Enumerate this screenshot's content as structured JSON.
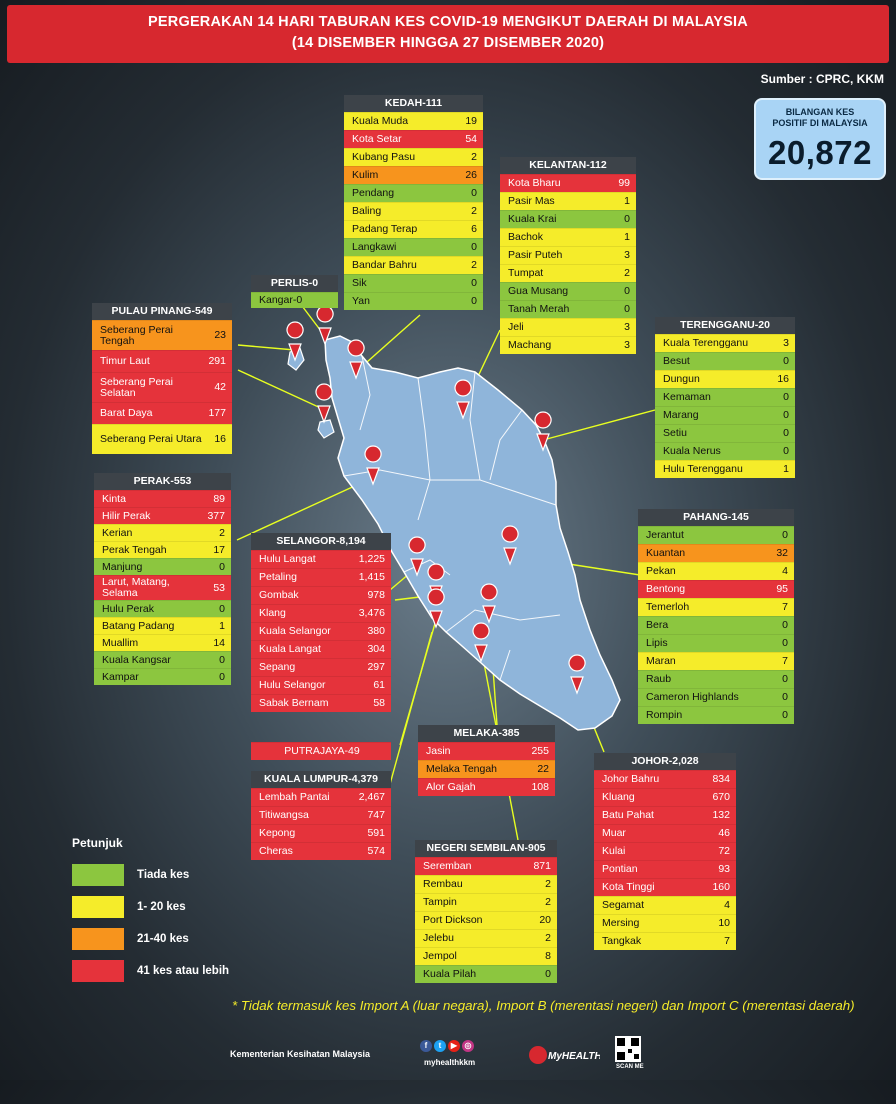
{
  "header": {
    "line1": "PERGERAKAN 14 HARI TABURAN KES COVID-19 MENGIKUT DAERAH DI MALAYSIA",
    "line2": "(14 DISEMBER HINGGA 27 DISEMBER 2020)"
  },
  "source": "Sumber : CPRC, KKM",
  "total": {
    "label_1": "BILANGAN KES",
    "label_2": "POSITIF DI MALAYSIA",
    "value": "20,872"
  },
  "colors": {
    "red": "#e5333b",
    "yellow": "#f5ec2a",
    "green": "#8cc63f",
    "orange": "#f7941d",
    "header": "#3d4349",
    "banner": "#d7282f",
    "map": "#8fb5da"
  },
  "states": [
    {
      "id": "kedah",
      "title": "KEDAH-111",
      "districts": [
        [
          "Kuala Muda",
          "19",
          "y"
        ],
        [
          "Kota Setar",
          "54",
          "r"
        ],
        [
          "Kubang Pasu",
          "2",
          "y"
        ],
        [
          "Kulim",
          "26",
          "o"
        ],
        [
          "Pendang",
          "0",
          "g"
        ],
        [
          "Baling",
          "2",
          "y"
        ],
        [
          "Padang Terap",
          "6",
          "y"
        ],
        [
          "Langkawi",
          "0",
          "g"
        ],
        [
          "Bandar Bahru",
          "2",
          "y"
        ],
        [
          "Sik",
          "0",
          "g"
        ],
        [
          "Yan",
          "0",
          "g"
        ]
      ]
    },
    {
      "id": "kelantan",
      "title": "KELANTAN-112",
      "districts": [
        [
          "Kota Bharu",
          "99",
          "r"
        ],
        [
          "Pasir Mas",
          "1",
          "y"
        ],
        [
          "Kuala Krai",
          "0",
          "g"
        ],
        [
          "Bachok",
          "1",
          "y"
        ],
        [
          "Pasir Puteh",
          "3",
          "y"
        ],
        [
          "Tumpat",
          "2",
          "y"
        ],
        [
          "Gua Musang",
          "0",
          "g"
        ],
        [
          "Tanah Merah",
          "0",
          "g"
        ],
        [
          "Jeli",
          "3",
          "y"
        ],
        [
          "Machang",
          "3",
          "y"
        ]
      ]
    },
    {
      "id": "perlis",
      "title": "PERLIS-0",
      "districts": [
        [
          "Kangar-0",
          "",
          "g"
        ]
      ]
    },
    {
      "id": "pinang",
      "title": "PULAU PINANG-549",
      "districts": [
        [
          "Seberang Perai Tengah",
          "23",
          "o"
        ],
        [
          "Timur Laut",
          "291",
          "r"
        ],
        [
          "Seberang Perai Selatan",
          "42",
          "r"
        ],
        [
          "Barat Daya",
          "177",
          "r"
        ],
        [
          "Seberang Perai Utara",
          "16",
          "y"
        ]
      ]
    },
    {
      "id": "terengganu",
      "title": "TERENGGANU-20",
      "districts": [
        [
          "Kuala Terengganu",
          "3",
          "y"
        ],
        [
          "Besut",
          "0",
          "g"
        ],
        [
          "Dungun",
          "16",
          "y"
        ],
        [
          "Kemaman",
          "0",
          "g"
        ],
        [
          "Marang",
          "0",
          "g"
        ],
        [
          "Setiu",
          "0",
          "g"
        ],
        [
          "Kuala Nerus",
          "0",
          "g"
        ],
        [
          "Hulu Terengganu",
          "1",
          "y"
        ]
      ]
    },
    {
      "id": "perak",
      "title": "PERAK-553",
      "districts": [
        [
          "Kinta",
          "89",
          "r"
        ],
        [
          "Hilir Perak",
          "377",
          "r"
        ],
        [
          "Kerian",
          "2",
          "y"
        ],
        [
          "Perak Tengah",
          "17",
          "y"
        ],
        [
          "Manjung",
          "0",
          "g"
        ],
        [
          "Larut, Matang, Selama",
          "53",
          "r"
        ],
        [
          "Hulu Perak",
          "0",
          "g"
        ],
        [
          "Batang Padang",
          "1",
          "y"
        ],
        [
          "Muallim",
          "14",
          "y"
        ],
        [
          "Kuala Kangsar",
          "0",
          "g"
        ],
        [
          "Kampar",
          "0",
          "g"
        ]
      ]
    },
    {
      "id": "selangor",
      "title": "SELANGOR-8,194",
      "districts": [
        [
          "Hulu Langat",
          "1,225",
          "r"
        ],
        [
          "Petaling",
          "1,415",
          "r"
        ],
        [
          "Gombak",
          "978",
          "r"
        ],
        [
          "Klang",
          "3,476",
          "r"
        ],
        [
          "Kuala Selangor",
          "380",
          "r"
        ],
        [
          "Kuala Langat",
          "304",
          "r"
        ],
        [
          "Sepang",
          "297",
          "r"
        ],
        [
          "Hulu Selangor",
          "61",
          "r"
        ],
        [
          "Sabak Bernam",
          "58",
          "r"
        ]
      ]
    },
    {
      "id": "pahang",
      "title": "PAHANG-145",
      "districts": [
        [
          "Jerantut",
          "0",
          "g"
        ],
        [
          "Kuantan",
          "32",
          "o"
        ],
        [
          "Pekan",
          "4",
          "y"
        ],
        [
          "Bentong",
          "95",
          "r"
        ],
        [
          "Temerloh",
          "7",
          "y"
        ],
        [
          "Bera",
          "0",
          "g"
        ],
        [
          "Lipis",
          "0",
          "g"
        ],
        [
          "Maran",
          "7",
          "y"
        ],
        [
          "Raub",
          "0",
          "g"
        ],
        [
          "Cameron Highlands",
          "0",
          "g"
        ],
        [
          "Rompin",
          "0",
          "g"
        ]
      ]
    },
    {
      "id": "putrajaya",
      "title": "",
      "districts": [
        [
          "PUTRAJAYA-49",
          "",
          "r"
        ]
      ]
    },
    {
      "id": "melaka",
      "title": "MELAKA-385",
      "districts": [
        [
          "Jasin",
          "255",
          "r"
        ],
        [
          "Melaka Tengah",
          "22",
          "o"
        ],
        [
          "Alor Gajah",
          "108",
          "r"
        ]
      ]
    },
    {
      "id": "kl",
      "title": "KUALA LUMPUR-4,379",
      "districts": [
        [
          "Lembah Pantai",
          "2,467",
          "r"
        ],
        [
          "Titiwangsa",
          "747",
          "r"
        ],
        [
          "Kepong",
          "591",
          "r"
        ],
        [
          "Cheras",
          "574",
          "r"
        ]
      ]
    },
    {
      "id": "johor",
      "title": "JOHOR-2,028",
      "districts": [
        [
          "Johor Bahru",
          "834",
          "r"
        ],
        [
          "Kluang",
          "670",
          "r"
        ],
        [
          "Batu Pahat",
          "132",
          "r"
        ],
        [
          "Muar",
          "46",
          "r"
        ],
        [
          "Kulai",
          "72",
          "r"
        ],
        [
          "Pontian",
          "93",
          "r"
        ],
        [
          "Kota Tinggi",
          "160",
          "r"
        ],
        [
          "Segamat",
          "4",
          "y"
        ],
        [
          "Mersing",
          "10",
          "y"
        ],
        [
          "Tangkak",
          "7",
          "y"
        ]
      ]
    },
    {
      "id": "ns",
      "title": "NEGERI SEMBILAN-905",
      "districts": [
        [
          "Seremban",
          "871",
          "r"
        ],
        [
          "Rembau",
          "2",
          "y"
        ],
        [
          "Tampin",
          "2",
          "y"
        ],
        [
          "Port Dickson",
          "20",
          "y"
        ],
        [
          "Jelebu",
          "2",
          "y"
        ],
        [
          "Jempol",
          "8",
          "y"
        ],
        [
          "Kuala Pilah",
          "0",
          "g"
        ]
      ]
    }
  ],
  "legend": {
    "title": "Petunjuk",
    "items": [
      {
        "label": "Tiada kes",
        "color": "green"
      },
      {
        "label": "1- 20 kes",
        "color": "yellow"
      },
      {
        "label": "21-40 kes",
        "color": "orange"
      },
      {
        "label": "41 kes atau lebih",
        "color": "red"
      }
    ]
  },
  "note": "* Tidak termasuk kes Import A (luar negara),  Import B (merentasi negeri) dan Import C (merentasi daerah)",
  "footer": {
    "ministry": "Kementerian Kesihatan Malaysia",
    "social_handle": "myhealthkkm",
    "brand": "MyHEALTH",
    "scan_label": "SCAN ME",
    "social_icons": [
      "facebook-icon",
      "twitter-icon",
      "youtube-icon",
      "instagram-icon"
    ]
  }
}
